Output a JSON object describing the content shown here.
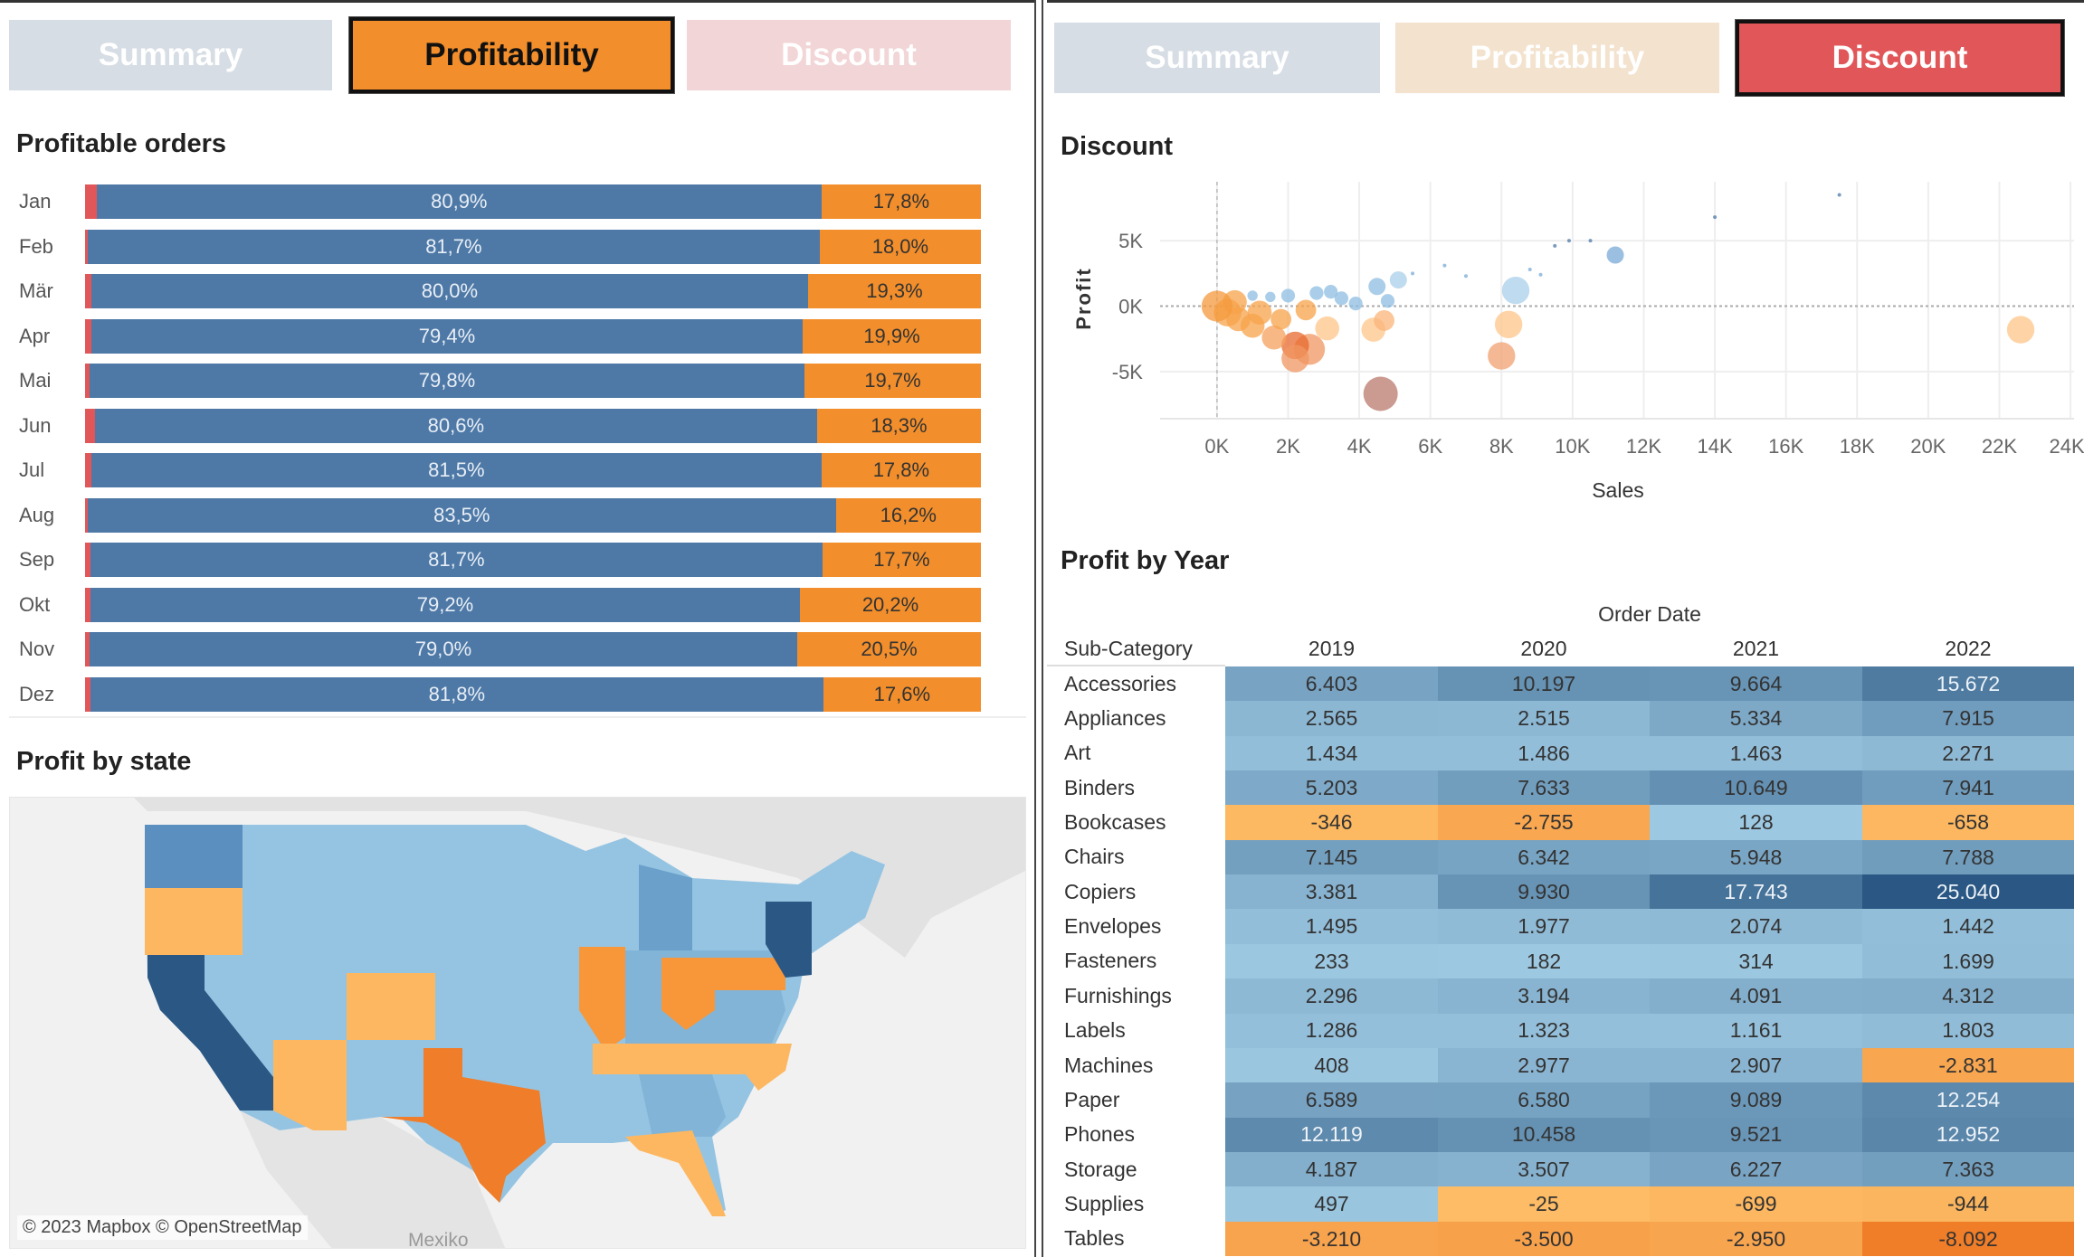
{
  "left_tabs": [
    {
      "label": "Summary",
      "state": "inactive",
      "color": "#d6dde4"
    },
    {
      "label": "Profitability",
      "state": "active",
      "color": "#f28e2b"
    },
    {
      "label": "Discount",
      "state": "inactive",
      "color": "#f2d5d6"
    }
  ],
  "right_tabs": [
    {
      "label": "Summary",
      "state": "inactive",
      "color": "#d6dde4"
    },
    {
      "label": "Profitability",
      "state": "inactive",
      "color": "#f3e2cd"
    },
    {
      "label": "Discount",
      "state": "active",
      "color": "#e15759"
    }
  ],
  "colors": {
    "profitable": "#4e79a7",
    "unprofitable": "#f28e2b",
    "other": "#e15759"
  },
  "profitable_orders": {
    "title": "Profitable orders",
    "chart_data": {
      "type": "bar",
      "stacked": true,
      "categories": [
        "Jan",
        "Feb",
        "Mär",
        "Apr",
        "Mai",
        "Jun",
        "Jul",
        "Aug",
        "Sep",
        "Okt",
        "Nov",
        "Dez"
      ],
      "series": [
        {
          "values": [
            80.9,
            81.7,
            80.0,
            79.4,
            79.8,
            80.6,
            81.5,
            83.5,
            81.7,
            79.2,
            79.0,
            81.8
          ],
          "labels": [
            "80,9%",
            "81,7%",
            "80,0%",
            "79,4%",
            "79,8%",
            "80,6%",
            "81,5%",
            "83,5%",
            "81,7%",
            "79,2%",
            "79,0%",
            "81,8%"
          ]
        },
        {
          "values": [
            17.8,
            18.0,
            19.3,
            19.9,
            19.7,
            18.3,
            17.8,
            16.2,
            17.7,
            20.2,
            20.5,
            17.6
          ],
          "labels": [
            "17,8%",
            "18,0%",
            "19,3%",
            "19,9%",
            "19,7%",
            "18,3%",
            "17,8%",
            "16,2%",
            "17,7%",
            "20,2%",
            "20,5%",
            "17,6%"
          ]
        }
      ]
    }
  },
  "profit_by_state": {
    "title": "Profit by state",
    "attribution": "© 2023 Mapbox © OpenStreetMap",
    "country_label": "Mexiko",
    "palette": {
      "dark_blue": "#2a5783",
      "mid_blue": "#5b8fbf",
      "blue": "#6aa0ca",
      "light_mid_blue": "#82b4d8",
      "light_blue": "#95c4e2",
      "light_orange": "#fdb761",
      "orange": "#f7973a",
      "dark_orange": "#ef7d2a"
    }
  },
  "discount": {
    "title": "Discount",
    "chart_data": {
      "type": "scatter",
      "xlabel": "Sales",
      "ylabel": "Profit",
      "xlim": [
        -1600,
        24100
      ],
      "ylim": [
        -8600,
        9500
      ],
      "xticks": [
        "0K",
        "2K",
        "4K",
        "6K",
        "8K",
        "10K",
        "12K",
        "14K",
        "16K",
        "18K",
        "20K",
        "22K",
        "24K"
      ],
      "xtick_values": [
        0,
        2000,
        4000,
        6000,
        8000,
        10000,
        12000,
        14000,
        16000,
        18000,
        20000,
        22000,
        24000
      ],
      "yticks": [
        "5K",
        "0K",
        "-5K"
      ],
      "ytick_values": [
        5000,
        0,
        -5000
      ],
      "grid": true,
      "points": [
        {
          "x": 17500,
          "y": 8500,
          "size": 1,
          "color": "#4e79a7"
        },
        {
          "x": 14000,
          "y": 6800,
          "size": 1,
          "color": "#4e79a7"
        },
        {
          "x": 10500,
          "y": 5000,
          "size": 1,
          "color": "#4e79a7"
        },
        {
          "x": 9900,
          "y": 5000,
          "size": 1,
          "color": "#4e79a7"
        },
        {
          "x": 9500,
          "y": 4600,
          "size": 1,
          "color": "#4e79a7"
        },
        {
          "x": 11200,
          "y": 3900,
          "size": 5,
          "color": "#7aaad6"
        },
        {
          "x": 8400,
          "y": 1200,
          "size": 8,
          "color": "#a9cfea"
        },
        {
          "x": 6400,
          "y": 3100,
          "size": 1,
          "color": "#7aaad6"
        },
        {
          "x": 7000,
          "y": 2300,
          "size": 1,
          "color": "#7aaad6"
        },
        {
          "x": 8800,
          "y": 2800,
          "size": 1,
          "color": "#7aaad6"
        },
        {
          "x": 9100,
          "y": 2400,
          "size": 1,
          "color": "#7aaad6"
        },
        {
          "x": 5500,
          "y": 2500,
          "size": 1,
          "color": "#7aaad6"
        },
        {
          "x": 5100,
          "y": 2000,
          "size": 5,
          "color": "#a9cfea"
        },
        {
          "x": 4500,
          "y": 1500,
          "size": 5,
          "color": "#8dbde2"
        },
        {
          "x": 4800,
          "y": 400,
          "size": 4,
          "color": "#8dbde2"
        },
        {
          "x": 3900,
          "y": 200,
          "size": 4,
          "color": "#8dbde2"
        },
        {
          "x": 3500,
          "y": 600,
          "size": 4,
          "color": "#8dbde2"
        },
        {
          "x": 3200,
          "y": 1100,
          "size": 4,
          "color": "#8dbde2"
        },
        {
          "x": 2800,
          "y": 1000,
          "size": 4,
          "color": "#8dbde2"
        },
        {
          "x": 2000,
          "y": 800,
          "size": 4,
          "color": "#8dbde2"
        },
        {
          "x": 1500,
          "y": 700,
          "size": 3,
          "color": "#8dbde2"
        },
        {
          "x": 1000,
          "y": 800,
          "size": 3,
          "color": "#8dbde2"
        },
        {
          "x": 8200,
          "y": -1400,
          "size": 8,
          "color": "#fdc68a"
        },
        {
          "x": 8000,
          "y": -3800,
          "size": 8,
          "color": "#f0a070"
        },
        {
          "x": 4600,
          "y": -6700,
          "size": 10,
          "color": "#b9786c"
        },
        {
          "x": 22600,
          "y": -1800,
          "size": 8,
          "color": "#fdc68a"
        },
        {
          "x": 4400,
          "y": -1800,
          "size": 7,
          "color": "#fdc68a"
        },
        {
          "x": 4700,
          "y": -1100,
          "size": 6,
          "color": "#fbb47a"
        },
        {
          "x": 3100,
          "y": -1700,
          "size": 7,
          "color": "#fdc68a"
        },
        {
          "x": 2600,
          "y": -3300,
          "size": 9,
          "color": "#f09560"
        },
        {
          "x": 2200,
          "y": -3000,
          "size": 8,
          "color": "#e8692f"
        },
        {
          "x": 2200,
          "y": -4000,
          "size": 8,
          "color": "#f09560"
        },
        {
          "x": 1600,
          "y": -2400,
          "size": 7,
          "color": "#f5a05c"
        },
        {
          "x": 2500,
          "y": -300,
          "size": 6,
          "color": "#f7a34b"
        },
        {
          "x": 1800,
          "y": -1000,
          "size": 6,
          "color": "#f7a34b"
        },
        {
          "x": 1200,
          "y": -500,
          "size": 7,
          "color": "#f7a34b"
        },
        {
          "x": 1000,
          "y": -1500,
          "size": 7,
          "color": "#f7a34b"
        },
        {
          "x": 600,
          "y": -1000,
          "size": 7,
          "color": "#f7a34b"
        },
        {
          "x": 300,
          "y": -500,
          "size": 8,
          "color": "#f7a34b"
        },
        {
          "x": 500,
          "y": 300,
          "size": 7,
          "color": "#f7a34b"
        },
        {
          "x": 0,
          "y": 0,
          "size": 9,
          "color": "#f49a3c"
        }
      ]
    }
  },
  "profit_by_year": {
    "title": "Profit by Year",
    "chart_data": {
      "type": "heatmap",
      "column_group": "Order Date",
      "row_header": "Sub-Category",
      "columns": [
        "2019",
        "2020",
        "2021",
        "2022"
      ],
      "rows": [
        {
          "label": "Accessories",
          "values": [
            6403,
            10197,
            9664,
            15672
          ],
          "display": [
            "6.403",
            "10.197",
            "9.664",
            "15.672"
          ]
        },
        {
          "label": "Appliances",
          "values": [
            2565,
            2515,
            5334,
            7915
          ],
          "display": [
            "2.565",
            "2.515",
            "5.334",
            "7.915"
          ]
        },
        {
          "label": "Art",
          "values": [
            1434,
            1486,
            1463,
            2271
          ],
          "display": [
            "1.434",
            "1.486",
            "1.463",
            "2.271"
          ]
        },
        {
          "label": "Binders",
          "values": [
            5203,
            7633,
            10649,
            7941
          ],
          "display": [
            "5.203",
            "7.633",
            "10.649",
            "7.941"
          ]
        },
        {
          "label": "Bookcases",
          "values": [
            -346,
            -2755,
            128,
            -658
          ],
          "display": [
            "-346",
            "-2.755",
            "128",
            "-658"
          ]
        },
        {
          "label": "Chairs",
          "values": [
            7145,
            6342,
            5948,
            7788
          ],
          "display": [
            "7.145",
            "6.342",
            "5.948",
            "7.788"
          ]
        },
        {
          "label": "Copiers",
          "values": [
            3381,
            9930,
            17743,
            25040
          ],
          "display": [
            "3.381",
            "9.930",
            "17.743",
            "25.040"
          ]
        },
        {
          "label": "Envelopes",
          "values": [
            1495,
            1977,
            2074,
            1442
          ],
          "display": [
            "1.495",
            "1.977",
            "2.074",
            "1.442"
          ]
        },
        {
          "label": "Fasteners",
          "values": [
            233,
            182,
            314,
            1699
          ],
          "display": [
            "233",
            "182",
            "314",
            "1.699"
          ]
        },
        {
          "label": "Furnishings",
          "values": [
            2296,
            3194,
            4091,
            4312
          ],
          "display": [
            "2.296",
            "3.194",
            "4.091",
            "4.312"
          ]
        },
        {
          "label": "Labels",
          "values": [
            1286,
            1323,
            1161,
            1803
          ],
          "display": [
            "1.286",
            "1.323",
            "1.161",
            "1.803"
          ]
        },
        {
          "label": "Machines",
          "values": [
            408,
            2977,
            2907,
            -2831
          ],
          "display": [
            "408",
            "2.977",
            "2.907",
            "-2.831"
          ]
        },
        {
          "label": "Paper",
          "values": [
            6589,
            6580,
            9089,
            12254
          ],
          "display": [
            "6.589",
            "6.580",
            "9.089",
            "12.254"
          ]
        },
        {
          "label": "Phones",
          "values": [
            12119,
            10458,
            9521,
            12952
          ],
          "display": [
            "12.119",
            "10.458",
            "9.521",
            "12.952"
          ]
        },
        {
          "label": "Storage",
          "values": [
            4187,
            3507,
            6227,
            7363
          ],
          "display": [
            "4.187",
            "3.507",
            "6.227",
            "7.363"
          ]
        },
        {
          "label": "Supplies",
          "values": [
            497,
            -25,
            -699,
            -944
          ],
          "display": [
            "497",
            "-25",
            "-699",
            "-944"
          ]
        },
        {
          "label": "Tables",
          "values": [
            -3210,
            -3500,
            -2950,
            -8092
          ],
          "display": [
            "-3.210",
            "-3.500",
            "-2.950",
            "-8.092"
          ]
        }
      ]
    }
  }
}
